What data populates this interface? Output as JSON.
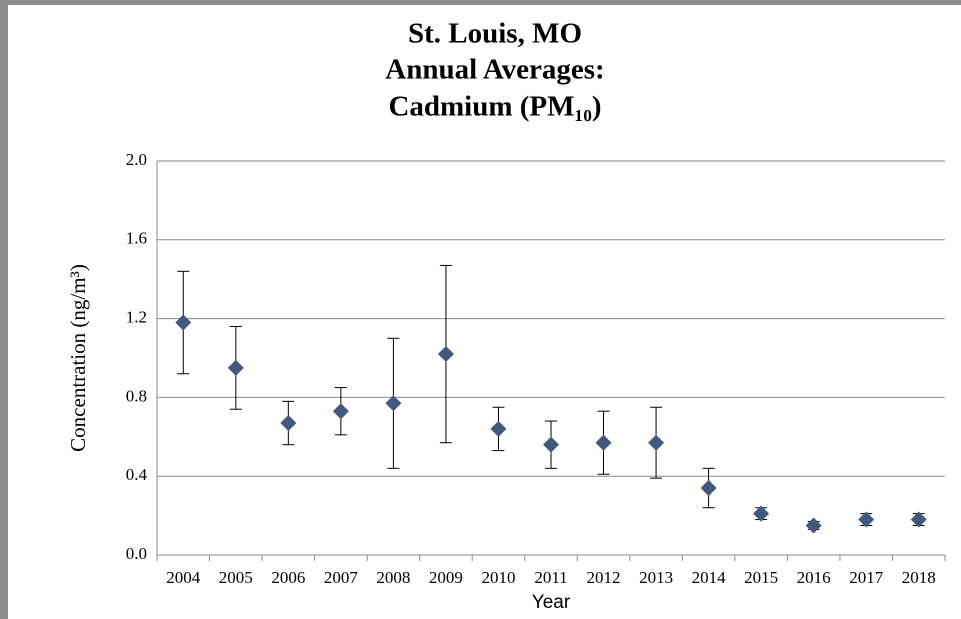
{
  "chart_data": {
    "type": "errorbar",
    "title": [
      "St. Louis, MO",
      "Annual Averages:",
      "Cadmium (PM₁₀)"
    ],
    "x_label": "Year",
    "y_label": "Concentration (ng/m³)",
    "categories": [
      "2004",
      "2005",
      "2006",
      "2007",
      "2008",
      "2009",
      "2010",
      "2011",
      "2012",
      "2013",
      "2014",
      "2015",
      "2016",
      "2017",
      "2018"
    ],
    "values": [
      1.18,
      0.95,
      0.67,
      0.73,
      0.77,
      1.02,
      0.64,
      0.56,
      0.57,
      0.57,
      0.34,
      0.21,
      0.15,
      0.18,
      0.18
    ],
    "errors": [
      0.26,
      0.21,
      0.11,
      0.12,
      0.33,
      0.45,
      0.11,
      0.12,
      0.16,
      0.18,
      0.1,
      0.03,
      0.02,
      0.03,
      0.03
    ],
    "color": "#42597f",
    "ylim": [
      0,
      2
    ],
    "yticks": [
      {
        "value": 0,
        "label": "0.0"
      },
      0.4,
      0.8,
      1.2,
      1.6,
      {
        "value": 2,
        "label": "2.0"
      }
    ],
    "grid": true
  }
}
